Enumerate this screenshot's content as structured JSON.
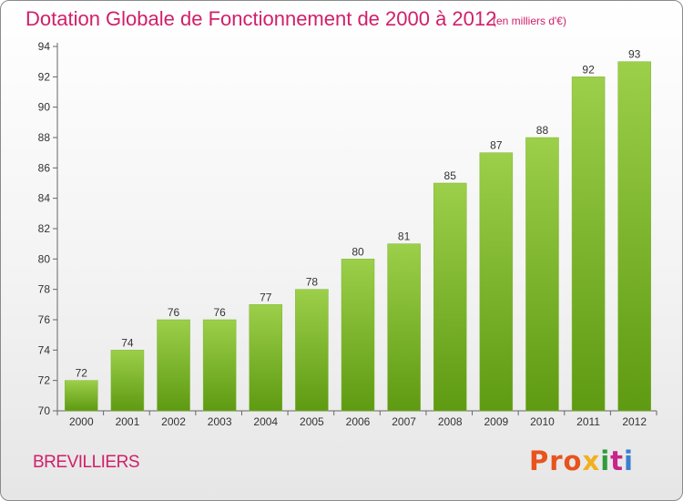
{
  "header": {
    "title": "Dotation Globale de Fonctionnement de 2000 à 2012",
    "unit": "(en milliers d'€)"
  },
  "footer": {
    "commune": "BREVILLIERS",
    "logo": [
      "Pro",
      "x",
      "i",
      "t",
      "i"
    ]
  },
  "colors": {
    "bar_top": "#9ccf4a",
    "bar_bottom": "#5e9a12",
    "accent": "#d0206a"
  },
  "chart_data": {
    "type": "bar",
    "title": "Dotation Globale de Fonctionnement de 2000 à 2012",
    "subtitle": "(en milliers d'€)",
    "categories": [
      "2000",
      "2001",
      "2002",
      "2003",
      "2004",
      "2005",
      "2006",
      "2007",
      "2008",
      "2009",
      "2010",
      "2011",
      "2012"
    ],
    "values": [
      72,
      74,
      76,
      76,
      77,
      78,
      80,
      81,
      85,
      87,
      88,
      92,
      93
    ],
    "ylim": [
      70,
      94
    ],
    "yticks": [
      70,
      72,
      74,
      76,
      78,
      80,
      82,
      84,
      86,
      88,
      90,
      92,
      94
    ],
    "grid": false,
    "legend": "none"
  }
}
